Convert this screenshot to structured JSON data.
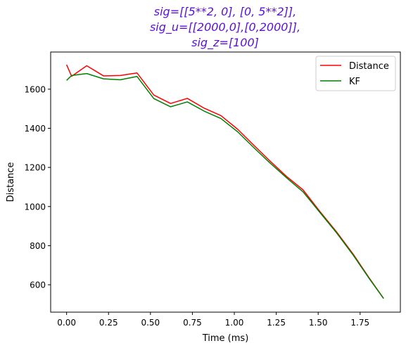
{
  "chart_data": {
    "type": "line",
    "title_lines": [
      "sig=[[5**2, 0], [0, 5**2]],",
      "sig_u=[[2000,0],[0,2000]],",
      "sig_z=[100]"
    ],
    "title_color": "#5b0fd6",
    "xlabel": "Time (ms)",
    "ylabel": "Distance",
    "xlim": [
      -0.095,
      1.99
    ],
    "ylim": [
      460,
      1790
    ],
    "xticks": [
      0.0,
      0.25,
      0.5,
      0.75,
      1.0,
      1.25,
      1.5,
      1.75
    ],
    "xtick_labels": [
      "0.00",
      "0.25",
      "0.50",
      "0.75",
      "1.00",
      "1.25",
      "1.50",
      "1.75"
    ],
    "yticks": [
      600,
      800,
      1000,
      1200,
      1400,
      1600
    ],
    "ytick_labels": [
      "600",
      "800",
      "1000",
      "1200",
      "1400",
      "1600"
    ],
    "grid": false,
    "legend_position": "top-right",
    "series": [
      {
        "name": "Distance",
        "color": "#ff0000",
        "x": [
          0.0,
          0.03,
          0.12,
          0.22,
          0.32,
          0.42,
          0.52,
          0.62,
          0.72,
          0.82,
          0.92,
          1.02,
          1.12,
          1.21,
          1.31,
          1.41,
          1.51,
          1.61,
          1.71,
          1.8,
          1.89
        ],
        "y": [
          1725,
          1666,
          1720,
          1668,
          1670,
          1683,
          1570,
          1527,
          1553,
          1503,
          1465,
          1395,
          1310,
          1235,
          1155,
          1085,
          975,
          870,
          755,
          640,
          530
        ]
      },
      {
        "name": "KF",
        "color": "#008000",
        "x": [
          0.0,
          0.03,
          0.12,
          0.22,
          0.32,
          0.42,
          0.52,
          0.62,
          0.72,
          0.82,
          0.92,
          1.02,
          1.12,
          1.21,
          1.31,
          1.41,
          1.51,
          1.61,
          1.71,
          1.8,
          1.89
        ],
        "y": [
          1645,
          1670,
          1680,
          1653,
          1648,
          1665,
          1552,
          1510,
          1535,
          1488,
          1450,
          1382,
          1298,
          1225,
          1148,
          1075,
          970,
          865,
          750,
          637,
          530
        ]
      }
    ]
  }
}
